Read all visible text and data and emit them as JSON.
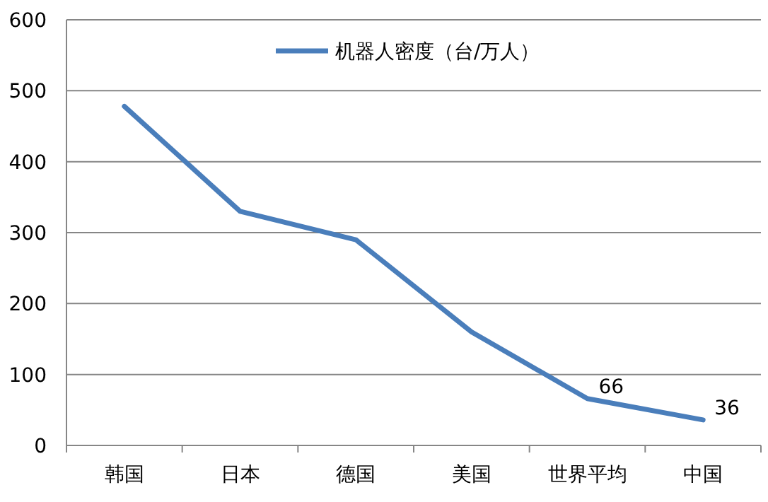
{
  "chart_data": {
    "type": "line",
    "categories": [
      "韩国",
      "日本",
      "德国",
      "美国",
      "世界平均",
      "中国"
    ],
    "series": [
      {
        "name": "机器人密度（台/万人）",
        "color": "#4a7ebb",
        "values": [
          478,
          330,
          290,
          160,
          66,
          36
        ],
        "value_labels": [
          null,
          null,
          null,
          null,
          "66",
          "36"
        ]
      }
    ],
    "ylim": [
      0,
      600
    ],
    "yticks": [
      0,
      100,
      200,
      300,
      400,
      500,
      600
    ],
    "grid": "y",
    "legend": "top"
  }
}
